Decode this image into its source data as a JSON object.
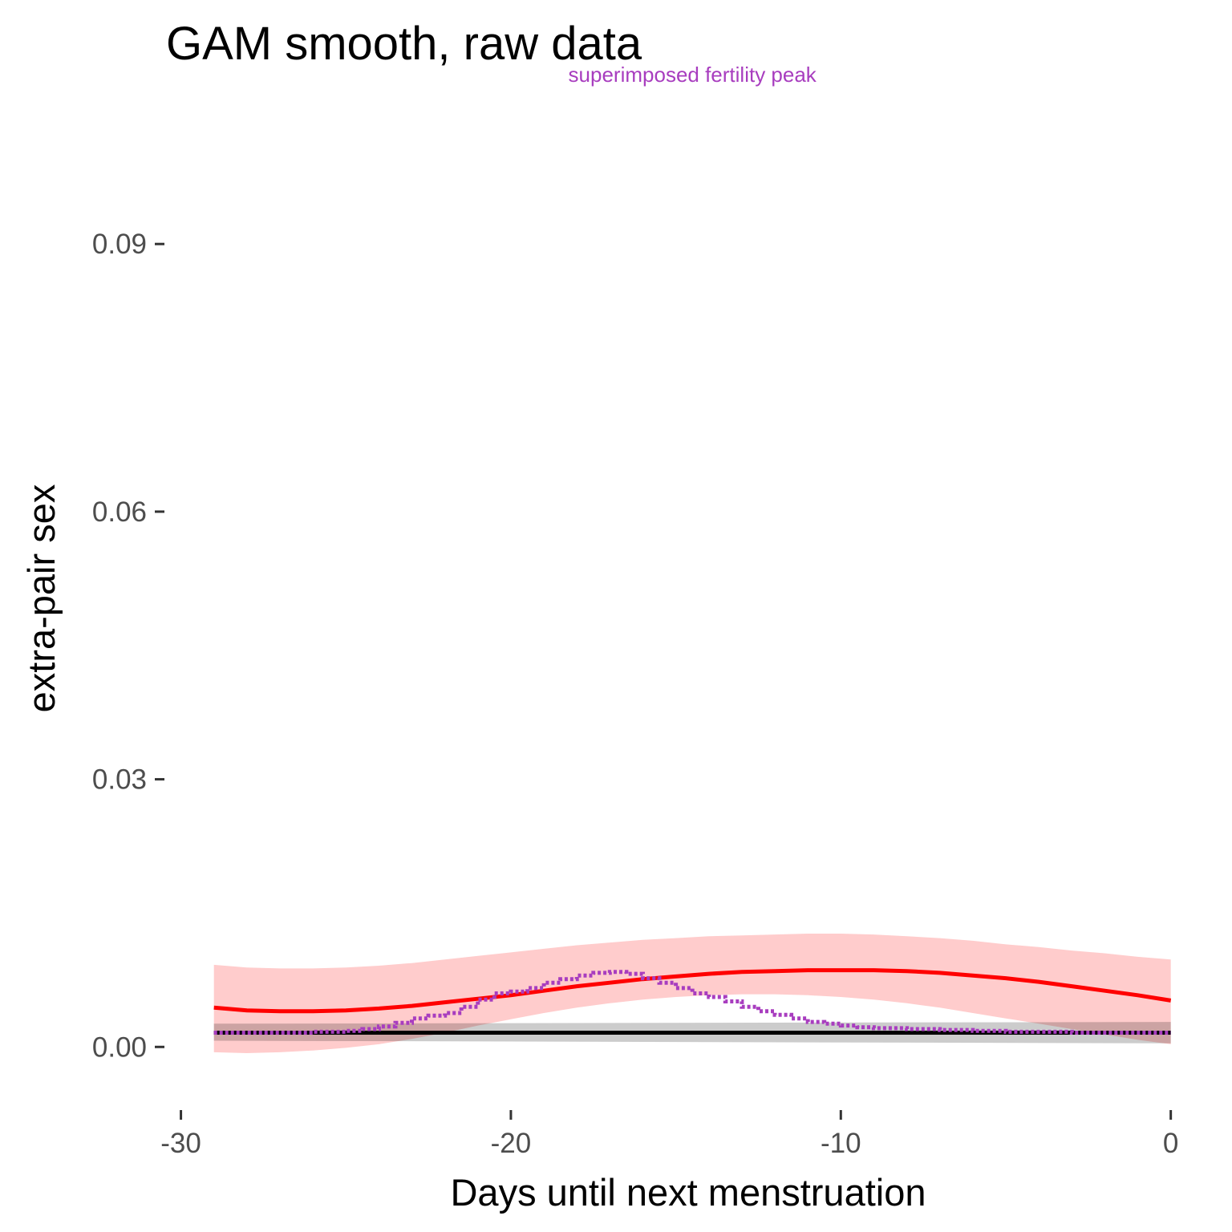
{
  "chart_data": {
    "type": "line",
    "title": "GAM smooth, raw data",
    "xlabel": "Days until next menstruation",
    "ylabel": "extra-pair sex",
    "xlim": [
      -30.5,
      0.3
    ],
    "ylim": [
      -0.006,
      0.108
    ],
    "x_ticks": [
      -30,
      -20,
      -10,
      0
    ],
    "x_tick_labels": [
      "-30",
      "-20",
      "-10",
      "0"
    ],
    "y_ticks": [
      0,
      0.03,
      0.06,
      0.09
    ],
    "y_tick_labels": [
      "0.00",
      "0.03",
      "0.06",
      "0.09"
    ],
    "grid": false,
    "annotation": {
      "text": "superimposed fertility peak",
      "x": -14.5,
      "y": 0.1082,
      "color": "#a83dbf"
    },
    "series": [
      {
        "style": "line",
        "color": "#ff0000",
        "x": [
          -29,
          -28,
          -27,
          -26,
          -25,
          -24,
          -23,
          -22,
          -21,
          -20,
          -19,
          -18,
          -17,
          -16,
          -15,
          -14,
          -13,
          -12,
          -11,
          -10,
          -9,
          -8,
          -7,
          -6,
          -5,
          -4,
          -3,
          -2,
          -1,
          0
        ],
        "y": [
          0.0044,
          0.0041,
          0.004,
          0.004,
          0.0041,
          0.0043,
          0.0046,
          0.005,
          0.0054,
          0.0058,
          0.0063,
          0.0068,
          0.0072,
          0.0076,
          0.0079,
          0.0082,
          0.0084,
          0.0085,
          0.0086,
          0.0086,
          0.0086,
          0.0085,
          0.0083,
          0.008,
          0.0077,
          0.0073,
          0.0068,
          0.0063,
          0.0058,
          0.0052
        ],
        "ci_lower": [
          -0.0006,
          -0.0007,
          -0.0006,
          -0.0004,
          -0.0001,
          0.0003,
          0.0009,
          0.0016,
          0.0024,
          0.0031,
          0.0038,
          0.0044,
          0.0049,
          0.0053,
          0.0056,
          0.0058,
          0.0059,
          0.0059,
          0.0058,
          0.0056,
          0.0053,
          0.0049,
          0.0044,
          0.0038,
          0.0032,
          0.0026,
          0.002,
          0.0014,
          0.0008,
          0.0003
        ],
        "ci_upper": [
          0.0092,
          0.0089,
          0.0088,
          0.0088,
          0.0089,
          0.0091,
          0.0094,
          0.0098,
          0.0102,
          0.0106,
          0.011,
          0.0114,
          0.0117,
          0.012,
          0.0122,
          0.0124,
          0.0125,
          0.0126,
          0.0127,
          0.0127,
          0.0126,
          0.0124,
          0.0122,
          0.0119,
          0.0115,
          0.0112,
          0.0108,
          0.0105,
          0.0101,
          0.0098
        ]
      },
      {
        "style": "line",
        "color": "#000000",
        "x": [
          -29,
          0
        ],
        "y": [
          0.0016,
          0.0016
        ],
        "ci_lower": [
          0.0007,
          0.0004
        ],
        "ci_upper": [
          0.0026,
          0.0028
        ]
      },
      {
        "style": "dotted-step",
        "color": "#a83dbf",
        "x": [
          -29,
          -28,
          -27,
          -26,
          -25,
          -24.5,
          -24,
          -23.5,
          -23,
          -22.5,
          -22,
          -21.5,
          -21,
          -20.5,
          -20,
          -19.5,
          -19,
          -18.5,
          -18,
          -17.5,
          -17,
          -16.5,
          -16,
          -15.5,
          -15,
          -14.5,
          -14,
          -13.5,
          -13,
          -12.5,
          -12,
          -11.5,
          -11,
          -10.5,
          -10,
          -9.5,
          -9,
          -8,
          -7,
          -6,
          -5,
          -4,
          -3,
          -2,
          -1,
          0
        ],
        "y": [
          0.0016,
          0.0016,
          0.0016,
          0.0017,
          0.0018,
          0.002,
          0.0023,
          0.0027,
          0.0032,
          0.0035,
          0.0038,
          0.0045,
          0.0053,
          0.006,
          0.0062,
          0.0066,
          0.0072,
          0.0076,
          0.008,
          0.0083,
          0.0084,
          0.0082,
          0.0077,
          0.0072,
          0.0066,
          0.006,
          0.0056,
          0.0051,
          0.0045,
          0.004,
          0.0036,
          0.0032,
          0.0028,
          0.0026,
          0.0024,
          0.0022,
          0.0021,
          0.002,
          0.0019,
          0.0018,
          0.0017,
          0.0017,
          0.0016,
          0.0016,
          0.0016,
          0.0016
        ]
      }
    ]
  }
}
